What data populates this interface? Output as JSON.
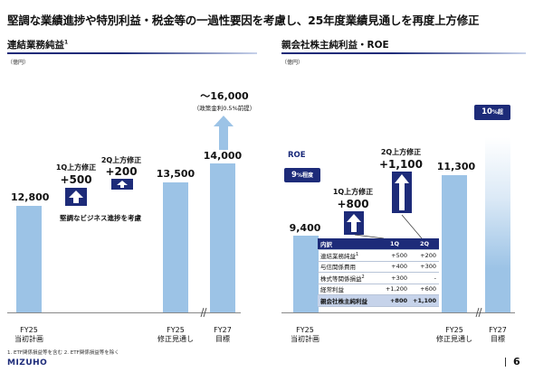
{
  "title": "堅調な業績進捗や特別利益・税金等の一過性要因を考慮し、25年度業績見通しを再度上方修正",
  "brand_color": "#1d2b79",
  "bar_color": "#9cc3e6",
  "left": {
    "title": "連結業務純益",
    "title_sup": "1",
    "unit": "（億円）",
    "bars": [
      {
        "value_label": "12,800",
        "xlabel": [
          "FY25",
          "当初計画"
        ]
      },
      {
        "value_label": "13,500",
        "xlabel": [
          "FY25",
          "修正見通し"
        ]
      },
      {
        "value_label": "14,000",
        "xlabel": [
          "FY27",
          "目標"
        ]
      }
    ],
    "q1": {
      "label": "1Q上方修正",
      "value": "+500"
    },
    "q2": {
      "label": "2Q上方修正",
      "value": "+200"
    },
    "note": "堅調なビジネス進捗を考慮",
    "target_up": "～16,000",
    "target_note": "（政策金利0.5%前提）",
    "footnote": "1. ETF関係損益等を含む 2. ETF関係損益等を除く"
  },
  "right": {
    "title": "親会社株主純利益・ROE",
    "unit": "（億円）",
    "roe_label": "ROE",
    "roe_pill_main": "9",
    "roe_pill_suffix": "%程度",
    "roe_target_main": "10",
    "roe_target_suffix": "%超",
    "bars": [
      {
        "value_label": "9,400",
        "xlabel": [
          "FY25",
          "当初計画"
        ]
      },
      {
        "value_label": "11,300",
        "xlabel": [
          "FY25",
          "修正見通し"
        ]
      },
      {
        "value_label": "",
        "xlabel": [
          "FY27",
          "目標"
        ]
      }
    ],
    "q1": {
      "label": "1Q上方修正",
      "value": "+800"
    },
    "q2": {
      "label": "2Q上方修正",
      "value": "+1,100"
    },
    "table": {
      "headers": [
        "内訳",
        "1Q",
        "2Q"
      ],
      "rows": [
        {
          "label": "連結業務純益",
          "sup": "1",
          "q1": "+500",
          "q2": "+200"
        },
        {
          "label": "与信関係費用",
          "sup": "",
          "q1": "+400",
          "q2": "+300"
        },
        {
          "label": "株式等関係損益",
          "sup": "2",
          "q1": "+300",
          "q2": "-"
        },
        {
          "label": "経常利益",
          "sup": "",
          "q1": "+1,200",
          "q2": "+600"
        }
      ],
      "total": {
        "label": "親会社株主純利益",
        "q1": "+800",
        "q2": "+1,100"
      }
    }
  },
  "logo": "MIZUHO",
  "page_number": "6"
}
